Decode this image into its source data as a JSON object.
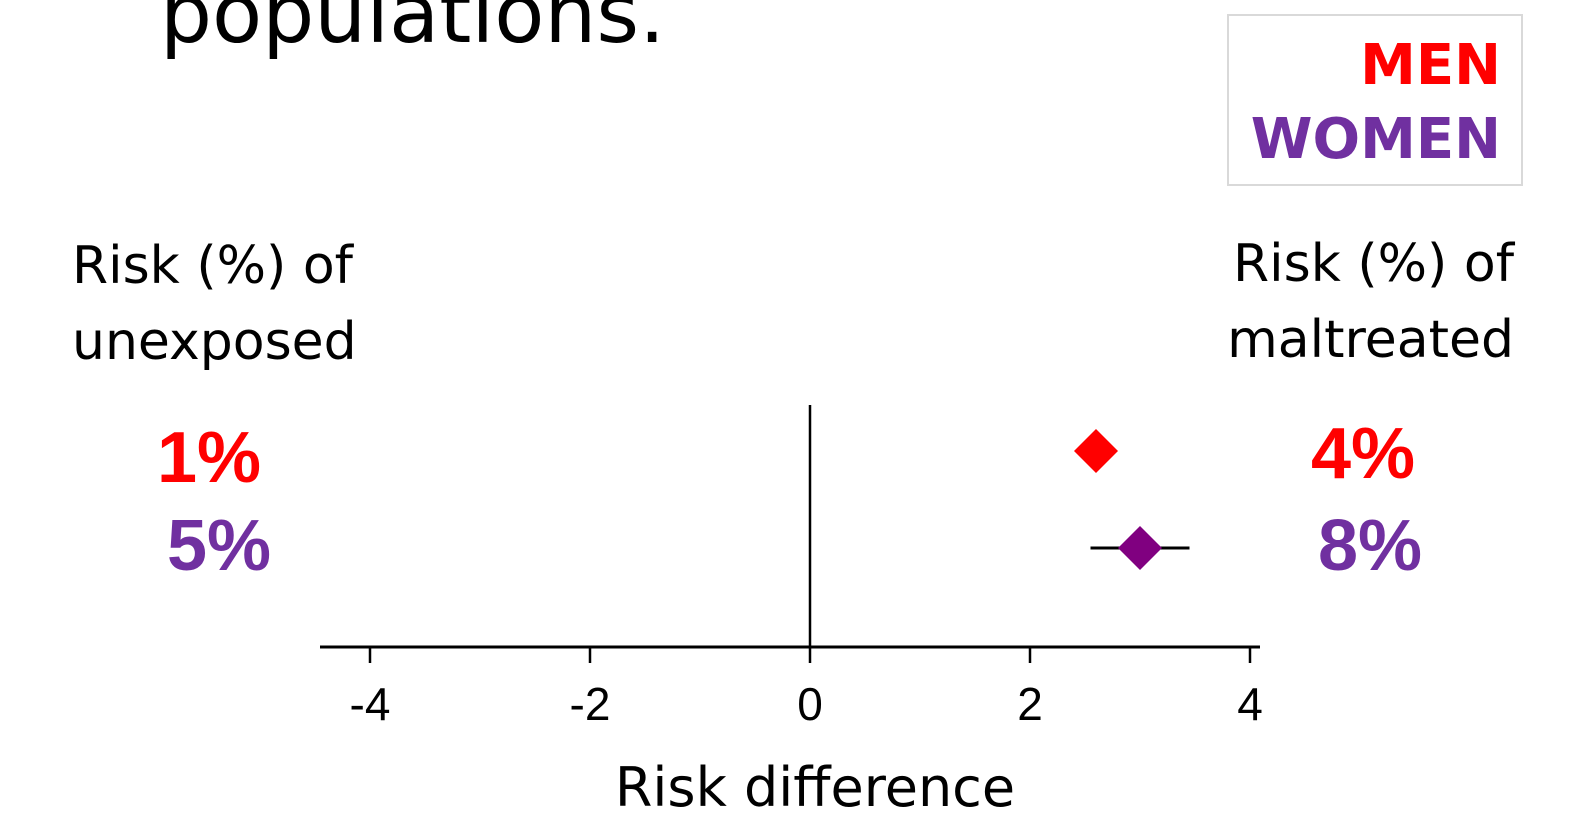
{
  "slide": {
    "title": "populations."
  },
  "legend": [
    {
      "label": "MEN",
      "color": "#ff0000"
    },
    {
      "label": "WOMEN",
      "color": "#7030a0"
    }
  ],
  "left_header": "Risk (%) of\nunexposed",
  "right_header": "Risk (%)  of\nmaltreated",
  "groups": [
    {
      "unexposed": "1%",
      "maltreated": "4%",
      "color": "#ff0000",
      "marker_color": "#ff0000"
    },
    {
      "unexposed": "5%",
      "maltreated": "8%",
      "color": "#7030a0",
      "marker_color": "#800080"
    }
  ],
  "chart_data": {
    "type": "scatter",
    "xlabel": "Risk difference",
    "xlim": [
      -4.5,
      4
    ],
    "xticks": [
      -4,
      -2,
      0,
      2,
      4
    ],
    "tick_labels": [
      "-4",
      "-2",
      "0",
      "2",
      "4"
    ],
    "reference_line": 0,
    "series": [
      {
        "name": "MEN",
        "estimate": 2.6,
        "ci": [
          2.6,
          2.6
        ],
        "color": "#ff0000"
      },
      {
        "name": "WOMEN",
        "estimate": 3.0,
        "ci": [
          2.55,
          3.45
        ],
        "color": "#800080"
      }
    ]
  }
}
